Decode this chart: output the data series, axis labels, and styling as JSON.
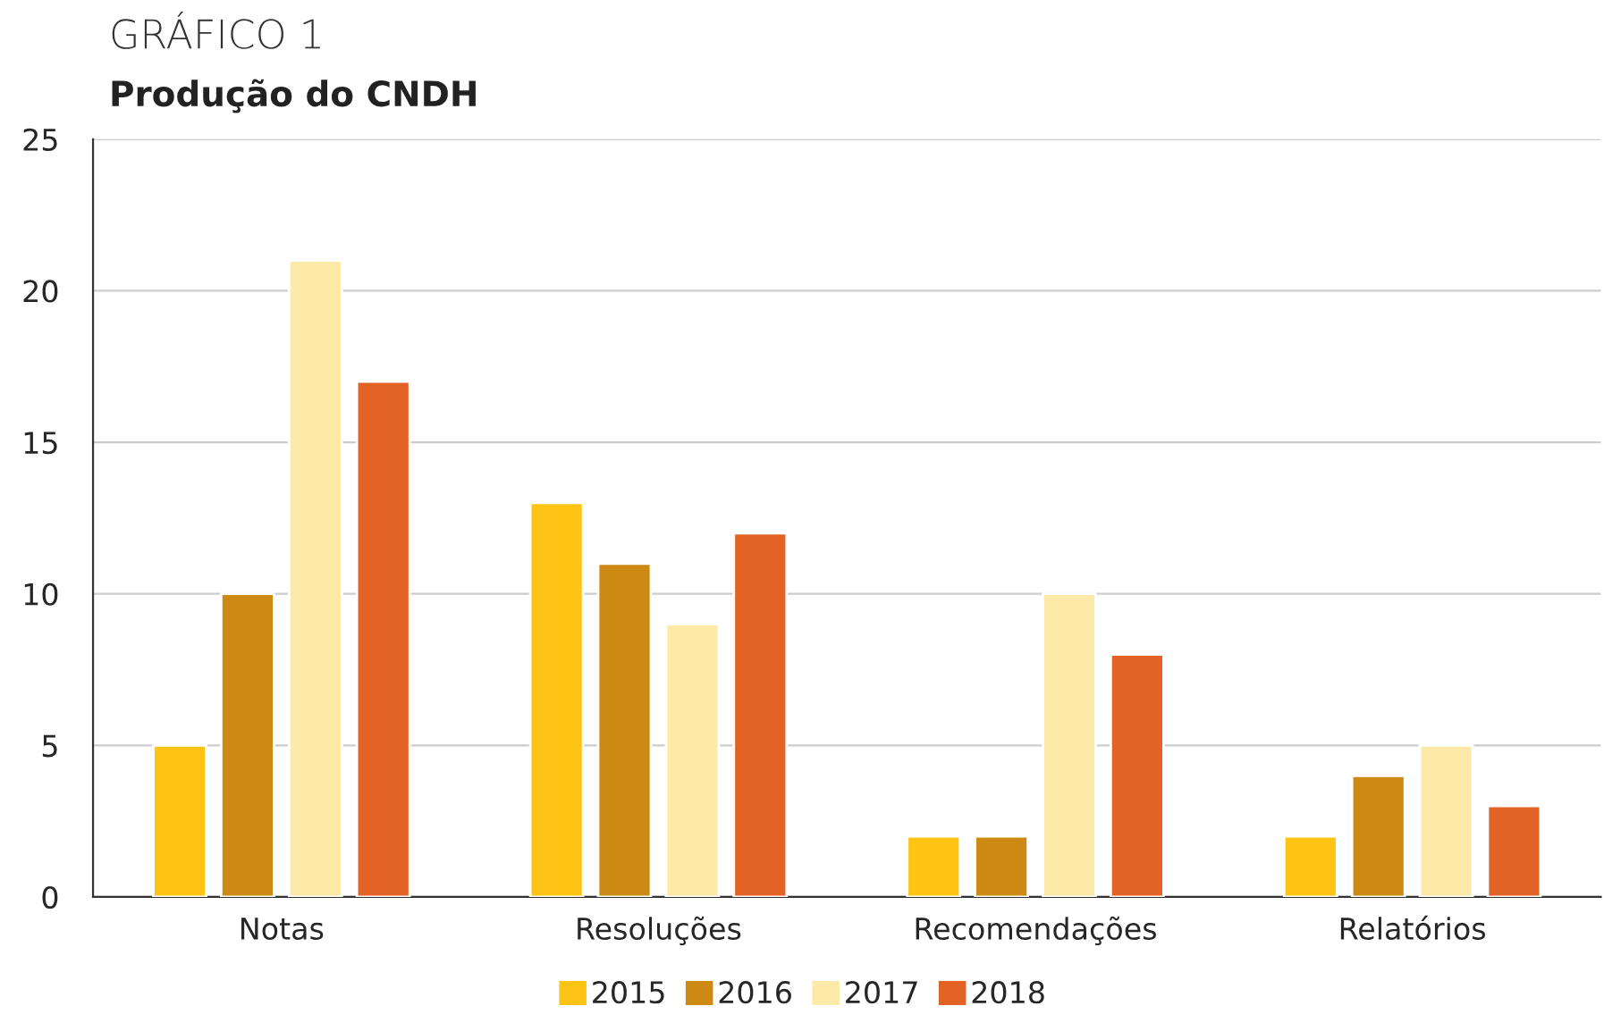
{
  "chart_data": {
    "type": "bar",
    "title": "GRÁFICO 1",
    "subtitle": "Produção do CNDH",
    "categories": [
      "Notas",
      "Resoluções",
      "Recomendações",
      "Relatórios"
    ],
    "series": [
      {
        "name": "2015",
        "color": "#fdc416",
        "values": [
          5,
          13,
          2,
          2
        ]
      },
      {
        "name": "2016",
        "color": "#cc8a14",
        "values": [
          10,
          11,
          2,
          4
        ]
      },
      {
        "name": "2017",
        "color": "#fdeaa9",
        "values": [
          21,
          9,
          10,
          5
        ]
      },
      {
        "name": "2018",
        "color": "#e36325",
        "values": [
          17,
          12,
          8,
          3
        ]
      }
    ],
    "ylim": [
      0,
      25
    ],
    "yticks": [
      0,
      5,
      10,
      15,
      20,
      25
    ],
    "grid": "y",
    "legend": "bottom"
  }
}
